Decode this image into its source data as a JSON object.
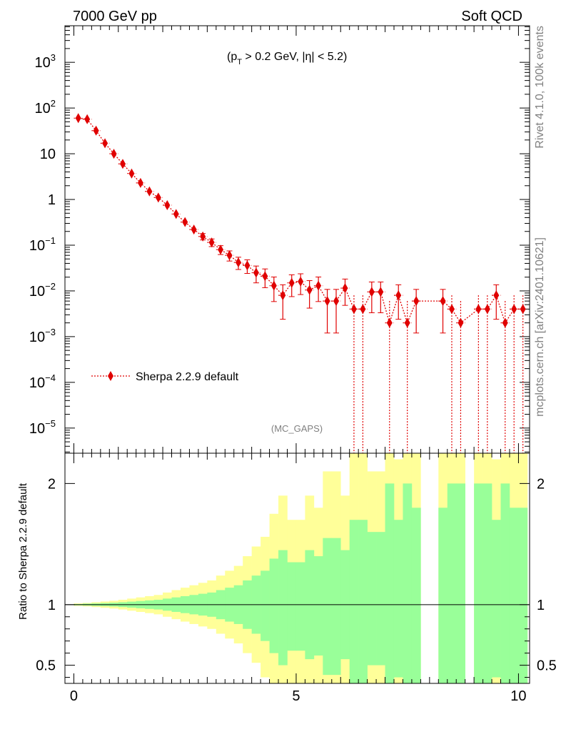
{
  "header": {
    "left": "7000 GeV pp",
    "right": "Soft QCD"
  },
  "side_labels": {
    "top": "Rivet 4.1.0,  100k events",
    "bottom": "mcplots.cern.ch [arXiv:2401.10621]"
  },
  "colors": {
    "mc": "#e00000",
    "band_inner": "#99ff99",
    "band_outer": "#ffff99"
  },
  "chart_data": [
    {
      "type": "scatter",
      "title": "(p_T > 0.2 GeV, |η| < 5.2)",
      "title_parts": {
        "p": "(p",
        "t": "T",
        "rest": " > 0.2 GeV, |η| < 5.2)"
      },
      "watermark": "(MC_GAPS)",
      "xlim": [
        -0.2,
        10.25
      ],
      "ylog": true,
      "ylim_exp": [
        -5.55,
        3.8
      ],
      "ytick_labels": [
        {
          "exp": 3,
          "base": "10",
          "sup": "3"
        },
        {
          "exp": 2,
          "base": "10",
          "sup": "2"
        },
        {
          "exp": 1,
          "base": "10",
          "sup": ""
        },
        {
          "exp": 0,
          "base": "1",
          "sup": ""
        },
        {
          "exp": -1,
          "base": "10",
          "sup": "−1"
        },
        {
          "exp": -2,
          "base": "10",
          "sup": "−2"
        },
        {
          "exp": -3,
          "base": "10",
          "sup": "−3"
        },
        {
          "exp": -4,
          "base": "10",
          "sup": "−4"
        },
        {
          "exp": -5,
          "base": "10",
          "sup": "−5"
        }
      ],
      "legend": "Sherpa 2.2.9 default",
      "series": [
        {
          "name": "Sherpa 2.2.9 default",
          "x": [
            0.1,
            0.3,
            0.5,
            0.7,
            0.9,
            1.1,
            1.3,
            1.5,
            1.7,
            1.9,
            2.1,
            2.3,
            2.5,
            2.7,
            2.9,
            3.1,
            3.3,
            3.5,
            3.7,
            3.9,
            4.1,
            4.3,
            4.5,
            4.7,
            4.9,
            5.1,
            5.3,
            5.5,
            5.7,
            5.9,
            6.1,
            6.3,
            6.5,
            6.7,
            6.9,
            7.1,
            7.3,
            7.5,
            7.7,
            8.3,
            8.5,
            8.7,
            9.1,
            9.3,
            9.5,
            9.7,
            9.9,
            10.1
          ],
          "y": [
            60,
            57,
            32,
            17,
            10,
            6,
            3.7,
            2.3,
            1.5,
            1.1,
            0.75,
            0.48,
            0.32,
            0.22,
            0.155,
            0.115,
            0.08,
            0.06,
            0.042,
            0.036,
            0.025,
            0.021,
            0.013,
            0.008,
            0.015,
            0.016,
            0.0105,
            0.013,
            0.006,
            0.006,
            0.0115,
            0.004,
            0.004,
            0.0095,
            0.0095,
            0.002,
            0.008,
            0.002,
            0.006,
            0.006,
            0.004,
            0.002,
            0.004,
            0.004,
            0.008,
            0.002,
            0.004,
            0.004
          ],
          "y_err_pct": [
            1,
            1,
            1.3,
            1.7,
            2.2,
            2.8,
            3.6,
            4.5,
            5.5,
            6.5,
            8,
            10,
            12,
            14,
            16,
            19,
            22,
            25,
            30,
            33,
            40,
            44,
            55,
            70,
            50,
            48,
            60,
            55,
            80,
            80,
            58,
            100,
            100,
            65,
            65,
            200,
            70,
            200,
            80,
            80,
            100,
            200,
            100,
            100,
            70,
            200,
            100,
            100
          ],
          "x_err": 0.1
        }
      ]
    },
    {
      "type": "area",
      "ylabel": "Ratio to Sherpa 2.2.9 default",
      "xlim": [
        -0.2,
        10.25
      ],
      "ylim": [
        0.35,
        2.25
      ],
      "xticks": [
        0,
        5,
        10
      ],
      "xtick_labels": [
        "0",
        "5",
        "10"
      ],
      "ytick_labels": [
        {
          "value": 0.5,
          "label": "0.5"
        },
        {
          "value": 1,
          "label": "1"
        },
        {
          "value": 2,
          "label": "2"
        }
      ],
      "reference_line": 1,
      "bins": {
        "lo": [
          0,
          0.2,
          0.4,
          0.6,
          0.8,
          1,
          1.2,
          1.4,
          1.6,
          1.8,
          2,
          2.2,
          2.4,
          2.6,
          2.8,
          3,
          3.2,
          3.4,
          3.6,
          3.8,
          4,
          4.2,
          4.4,
          4.6,
          4.8,
          5,
          5.2,
          5.4,
          5.6,
          5.8,
          6,
          6.2,
          6.4,
          6.6,
          6.8,
          7,
          7.2,
          7.4,
          7.6,
          8.2,
          8.4,
          8.6,
          9,
          9.2,
          9.4,
          9.6,
          9.8,
          10
        ],
        "hi": [
          0.2,
          0.4,
          0.6,
          0.8,
          1,
          1.2,
          1.4,
          1.6,
          1.8,
          2,
          2.2,
          2.4,
          2.6,
          2.8,
          3,
          3.2,
          3.4,
          3.6,
          3.8,
          4,
          4.2,
          4.4,
          4.6,
          4.8,
          5,
          5.2,
          5.4,
          5.6,
          5.8,
          6,
          6.2,
          6.4,
          6.6,
          6.8,
          7,
          7.2,
          7.4,
          7.6,
          7.8,
          8.4,
          8.6,
          8.8,
          9.2,
          9.4,
          9.6,
          9.8,
          10,
          10.2
        ],
        "inner_up": [
          1.005,
          1.008,
          1.01,
          1.013,
          1.016,
          1.02,
          1.025,
          1.03,
          1.035,
          1.04,
          1.05,
          1.06,
          1.07,
          1.08,
          1.09,
          1.1,
          1.12,
          1.14,
          1.16,
          1.2,
          1.24,
          1.28,
          1.38,
          1.45,
          1.35,
          1.35,
          1.45,
          1.4,
          1.55,
          1.55,
          1.45,
          1.7,
          1.7,
          1.6,
          1.6,
          2.0,
          1.7,
          2.0,
          1.8,
          1.8,
          2.0,
          2.0,
          2.0,
          2.0,
          1.7,
          2.0,
          1.8,
          1.8
        ],
        "inner_lo": [
          0.995,
          0.993,
          0.99,
          0.988,
          0.985,
          0.98,
          0.975,
          0.97,
          0.965,
          0.96,
          0.95,
          0.94,
          0.93,
          0.92,
          0.91,
          0.9,
          0.88,
          0.86,
          0.84,
          0.8,
          0.76,
          0.7,
          0.6,
          0.5,
          0.62,
          0.62,
          0.55,
          0.58,
          0.42,
          0.42,
          0.55,
          0.35,
          0.35,
          0.5,
          0.5,
          0.35,
          0.4,
          0.35,
          0.35,
          0.35,
          0.35,
          0.35,
          0.35,
          0.35,
          0.4,
          0.35,
          0.35,
          0.35
        ],
        "outer_up": [
          1.01,
          1.014,
          1.02,
          1.026,
          1.032,
          1.04,
          1.05,
          1.06,
          1.07,
          1.08,
          1.1,
          1.12,
          1.14,
          1.16,
          1.18,
          1.2,
          1.24,
          1.28,
          1.32,
          1.4,
          1.48,
          1.56,
          1.75,
          1.9,
          1.7,
          1.7,
          1.9,
          1.8,
          2.1,
          2.1,
          1.9,
          2.25,
          2.25,
          2.1,
          2.1,
          2.25,
          2.2,
          2.25,
          2.25,
          2.25,
          2.25,
          2.25,
          2.25,
          2.25,
          2.2,
          2.25,
          2.25,
          2.25
        ],
        "outer_lo": [
          0.99,
          0.986,
          0.98,
          0.974,
          0.968,
          0.96,
          0.95,
          0.94,
          0.93,
          0.92,
          0.9,
          0.88,
          0.86,
          0.84,
          0.82,
          0.8,
          0.76,
          0.72,
          0.68,
          0.6,
          0.52,
          0.4,
          0.35,
          0.35,
          0.35,
          0.35,
          0.35,
          0.35,
          0.35,
          0.35,
          0.35,
          0.35,
          0.35,
          0.35,
          0.35,
          0.35,
          0.35,
          0.35,
          0.35,
          0.35,
          0.35,
          0.35,
          0.35,
          0.35,
          0.35,
          0.35,
          0.35,
          0.35
        ]
      }
    }
  ]
}
